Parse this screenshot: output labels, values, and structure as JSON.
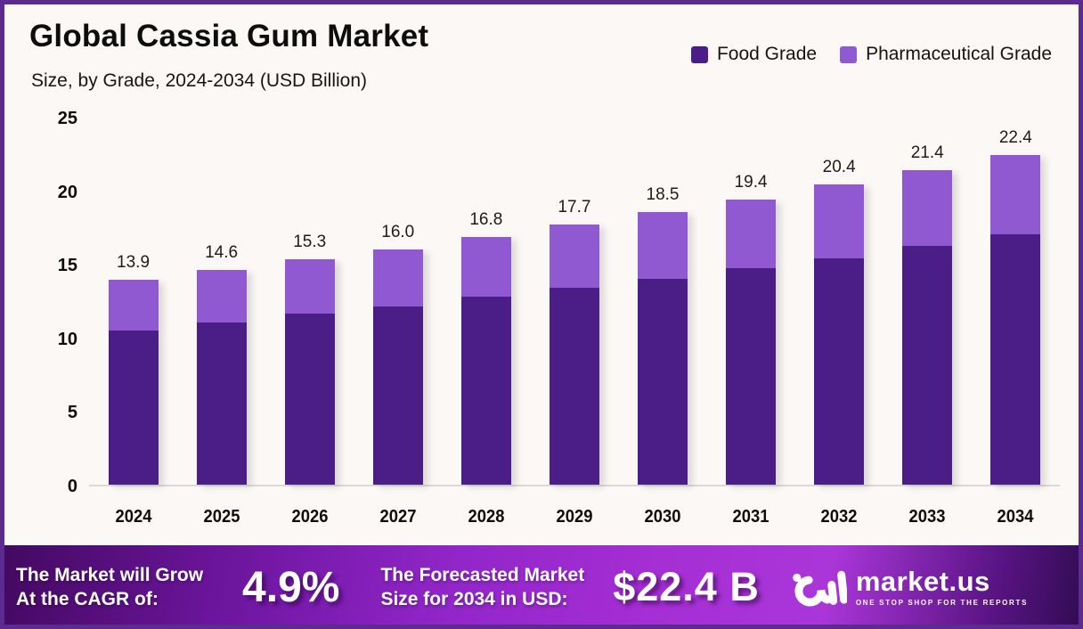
{
  "header": {
    "title": "Global Cassia Gum Market",
    "subtitle": "Size, by Grade, 2024-2034 (USD Billion)"
  },
  "legend": [
    {
      "label": "Food Grade",
      "color": "#4b1e87"
    },
    {
      "label": "Pharmaceutical Grade",
      "color": "#9059d1"
    }
  ],
  "chart_data": {
    "type": "bar",
    "stacked": true,
    "title": "Global Cassia Gum Market Size, by Grade, 2024-2034 (USD Billion)",
    "categories": [
      "2024",
      "2025",
      "2026",
      "2027",
      "2028",
      "2029",
      "2030",
      "2031",
      "2032",
      "2033",
      "2034"
    ],
    "series": [
      {
        "name": "Food Grade",
        "color": "#4b1e87",
        "values": [
          10.5,
          11.0,
          11.6,
          12.1,
          12.8,
          13.4,
          14.0,
          14.7,
          15.4,
          16.2,
          17.0
        ]
      },
      {
        "name": "Pharmaceutical Grade",
        "color": "#9059d1",
        "values": [
          3.4,
          3.6,
          3.7,
          3.9,
          4.0,
          4.3,
          4.5,
          4.7,
          5.0,
          5.2,
          5.4
        ]
      }
    ],
    "total_labels": [
      "13.9",
      "14.6",
      "15.3",
      "16.0",
      "16.8",
      "17.7",
      "18.5",
      "19.4",
      "20.4",
      "21.4",
      "22.4"
    ],
    "xlabel": "",
    "ylabel": "",
    "ylim": [
      0,
      25
    ],
    "yticks": [
      0,
      5,
      10,
      15,
      20,
      25
    ],
    "grid": false,
    "legend_position": "top-right"
  },
  "footer": {
    "cagr_label_line1": "The Market will Grow",
    "cagr_label_line2": "At the CAGR of:",
    "cagr_value": "4.9%",
    "forecast_label_line1": "The Forecasted Market",
    "forecast_label_line2": "Size for 2034 in USD:",
    "forecast_value": "$22.4 B",
    "brand": {
      "name": "market.us",
      "tagline": "ONE STOP SHOP FOR THE REPORTS"
    }
  },
  "colors": {
    "frame_border": "#5b2b8f",
    "chart_background": "#fbf8f5",
    "baseline": "#d9d9d9",
    "food_grade": "#4b1e87",
    "pharmaceutical_grade": "#9059d1",
    "footer_gradient_dark": "#42095f",
    "footer_gradient_bright": "#a52ed4",
    "footer_text": "#ffffff"
  }
}
